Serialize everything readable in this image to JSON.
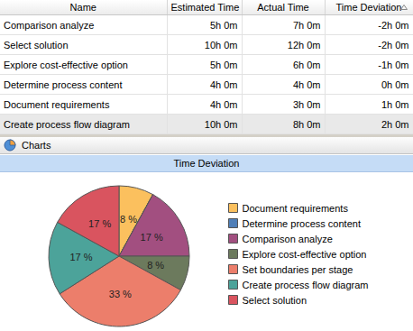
{
  "table": {
    "columns": [
      "Name",
      "Estimated Time",
      "Actual Time",
      "Time Deviation"
    ],
    "rows": [
      [
        "Comparison analyze",
        "5h 0m",
        "7h 0m",
        "-2h 0m"
      ],
      [
        "Select solution",
        "10h 0m",
        "12h 0m",
        "-2h 0m"
      ],
      [
        "Explore cost-effective option",
        "5h 0m",
        "6h 0m",
        "-1h 0m"
      ],
      [
        "Determine process content",
        "4h 0m",
        "4h 0m",
        "0h 0m"
      ],
      [
        "Document requirements",
        "4h 0m",
        "3h 0m",
        "1h 0m"
      ],
      [
        "Create process flow diagram",
        "10h 0m",
        "8h 0m",
        "2h 0m"
      ]
    ]
  },
  "panel": {
    "title": "Charts"
  },
  "chart_data": {
    "type": "pie",
    "title": "Time Deviation",
    "categories": [
      "Document requirements",
      "Determine process content",
      "Comparison analyze",
      "Explore cost-effective option",
      "Set boundaries per stage",
      "Create process flow diagram",
      "Select solution"
    ],
    "values": [
      8,
      0,
      17,
      8,
      33,
      17,
      17
    ],
    "value_labels": [
      "8 %",
      null,
      "17 %",
      "8 %",
      "33 %",
      "17 %",
      "17 %"
    ],
    "colors": [
      "#fbc05e",
      "#4f7fb8",
      "#a24f80",
      "#6c7a5d",
      "#ec7e6b",
      "#4ca39a",
      "#d9545f"
    ],
    "data_labels": true,
    "legend": "right"
  }
}
